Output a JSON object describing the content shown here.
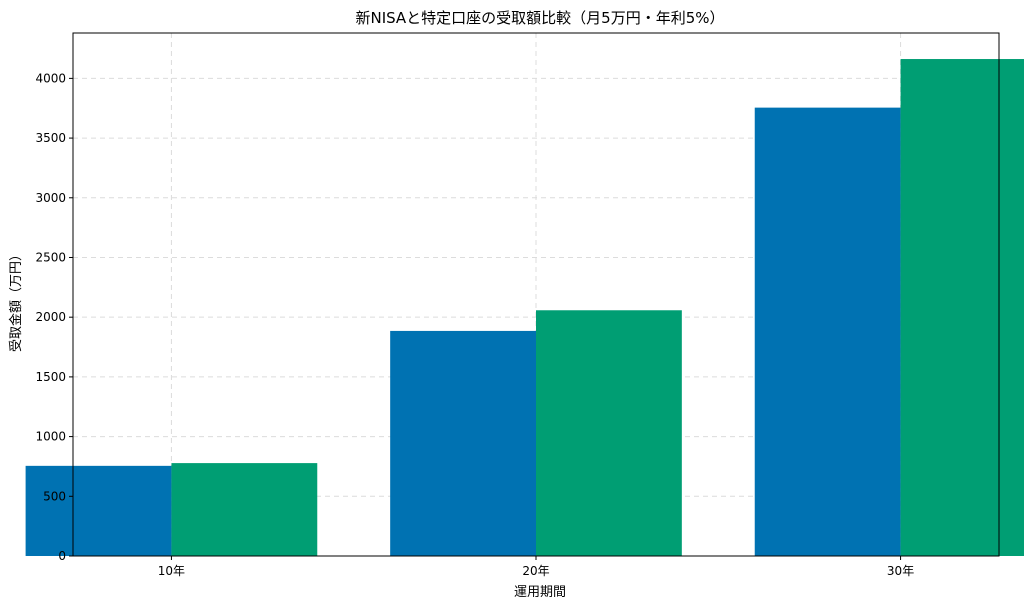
{
  "chart_data": {
    "type": "bar",
    "title": "新NISAと特定口座の受取額比較（月5万円・年利5%）",
    "xlabel": "運用期間",
    "ylabel": "受取金額（万円）",
    "categories": [
      "10年",
      "20年",
      "30年"
    ],
    "series": [
      {
        "values": [
          755,
          1885,
          3755
        ],
        "color": "#0072b2"
      },
      {
        "values": [
          778,
          2058,
          4162
        ],
        "color": "#009e73"
      }
    ],
    "ylim": [
      0,
      4380
    ],
    "yticks": [
      0,
      500,
      1000,
      1500,
      2000,
      2500,
      3000,
      3500,
      4000
    ],
    "grid": true,
    "legend": "none"
  }
}
